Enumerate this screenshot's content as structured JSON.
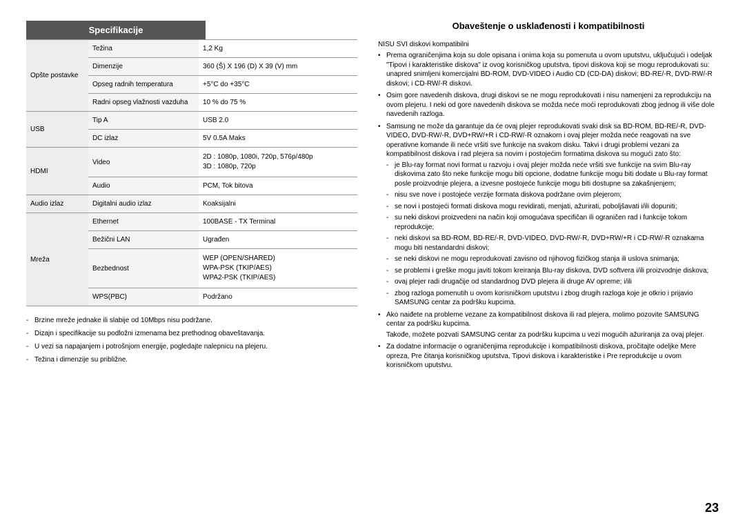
{
  "left": {
    "title": "Specifikacije",
    "table": {
      "groups": [
        {
          "category": "Opšte postavke",
          "rows": [
            {
              "label": "Težina",
              "value": "1,2 Kg"
            },
            {
              "label": "Dimenzije",
              "value": "360 (Š) X 196 (D) X 39 (V) mm"
            },
            {
              "label": "Opseg radnih temperatura",
              "value": "+5°C do +35°C"
            },
            {
              "label": "Radni opseg vlažnosti vazduha",
              "value": "10 % do 75 %"
            }
          ]
        },
        {
          "category": "USB",
          "rows": [
            {
              "label": "Tip A",
              "value": "USB 2.0"
            },
            {
              "label": "DC izlaz",
              "value": "5V 0.5A Maks"
            }
          ]
        },
        {
          "category": "HDMI",
          "rows": [
            {
              "label": "Video",
              "value": "2D : 1080p, 1080i, 720p, 576p/480p\n3D : 1080p, 720p"
            },
            {
              "label": "Audio",
              "value": "PCM, Tok bitova"
            }
          ]
        },
        {
          "category": "Audio izlaz",
          "rows": [
            {
              "label": "Digitalni audio izlaz",
              "value": "Koaksijalni"
            }
          ]
        },
        {
          "category": "Mreža",
          "rows": [
            {
              "label": "Ethernet",
              "value": "100BASE - TX Terminal"
            },
            {
              "label": "Bežični LAN",
              "value": "Ugrađen"
            },
            {
              "label": "Bezbednost",
              "value": "WEP (OPEN/SHARED)\nWPA-PSK (TKIP/AES)\nWPA2-PSK (TKIP/AES)"
            },
            {
              "label": "WPS(PBC)",
              "value": "Podržano"
            }
          ]
        }
      ]
    },
    "notes": [
      "Brzine mreže jednake ili slabije od 10Mbps nisu podržane.",
      "Dizajn i specifikacije su podložni izmenama bez prethodnog obaveštavanja.",
      "U vezi sa napajanjem i potrošnjom energije, pogledajte nalepnicu na plejeru.",
      "Težina i dimenzije su približne."
    ]
  },
  "right": {
    "title": "Obaveštenje o usklađenosti i kompatibilnosti",
    "intro": "NISU SVI diskovi kompatibilni",
    "bullets": [
      {
        "text": "Prema ograničenjima koja su dole opisana i onima koja su pomenuta u ovom uputstvu, uključujući i odeljak \"Tipovi i karakteristike diskova\" iz ovog korisničkog uputstva, tipovi diskova koji se mogu reprodukovati su: unapred snimljeni komercijalni BD-ROM, DVD-VIDEO i Audio CD (CD-DA) diskovi; BD-RE/-R, DVD-RW/-R diskovi; i CD-RW/-R diskovi."
      },
      {
        "text": "Osim gore navedenih diskova, drugi diskovi se ne mogu reprodukovati i nisu namenjeni za reprodukciju na ovom plejeru. I neki od gore navedenih diskova se možda neće moći reprodukovati zbog jednog ili više dole navedenih razloga."
      },
      {
        "text": "Samsung ne može da garantuje da će ovaj plejer reprodukovati svaki disk sa BD-ROM, BD-RE/-R, DVD-VIDEO, DVD-RW/-R, DVD+RW/+R i CD-RW/-R oznakom i ovaj plejer možda neće reagovati na sve operativne komande ili neće vršiti sve funkcije na svakom disku. Takvi i drugi problemi vezani za kompatibilnost diskova i rad plejera sa novim i postojećim formatima diskova su mogući zato što:",
        "dashes": [
          "je Blu-ray format novi format u razvoju i ovaj plejer možda neće vršiti sve funkcije na svim Blu-ray diskovima zato što neke funkcije mogu biti opcione, dodatne funkcije mogu biti dodate u Blu-ray format posle proizvodnje plejera, a izvesne postojeće funkcije mogu biti dostupne sa zakašnjenjem;",
          "nisu sve nove i postojeće verzije formata diskova podržane ovim plejerom;",
          "se novi i postojeći formati diskova mogu revidirati, menjati, ažurirati, poboljšavati i/ili dopuniti;",
          "su neki diskovi proizvedeni na način koji omogućava specifičan ili ograničen rad i funkcije tokom reprodukcije;",
          "neki diskovi sa BD-ROM, BD-RE/-R, DVD-VIDEO, DVD-RW/-R, DVD+RW/+R i CD-RW/-R oznakama mogu biti nestandardni diskovi;",
          "se neki diskovi ne mogu reprodukovati zavisno od njihovog fizičkog stanja ili uslova snimanja;",
          "se problemi i greške mogu javiti tokom kreiranja Blu-ray diskova, DVD softvera i/ili proizvodnje diskova;",
          "ovaj plejer radi drugačije od standardnog DVD plejera ili druge AV opreme; i/ili",
          "zbog razloga pomenutih u ovom korisničkom uputstvu i zbog drugih razloga koje je otkrio i prijavio SAMSUNG centar za podršku kupcima."
        ]
      },
      {
        "text": "Ako naiđete na probleme vezane za kompatibilnost diskova ili rad plejera, molimo pozovite SAMSUNG centar za podršku kupcima.",
        "follow": "Takođe, možete pozvati SAMSUNG centar za podršku kupcima u vezi mogućih ažuriranja za ovaj plejer."
      },
      {
        "text": "Za dodatne informacije o ograničenjima reprodukcije i kompatibilnosti diskova, pročitajte odeljke Mere opreza, Pre čitanja korisničkog uputstva, Tipovi diskova i karakteristike i Pre reprodukcije u ovom korisničkom uputstvu."
      }
    ]
  },
  "pageNumber": "23"
}
